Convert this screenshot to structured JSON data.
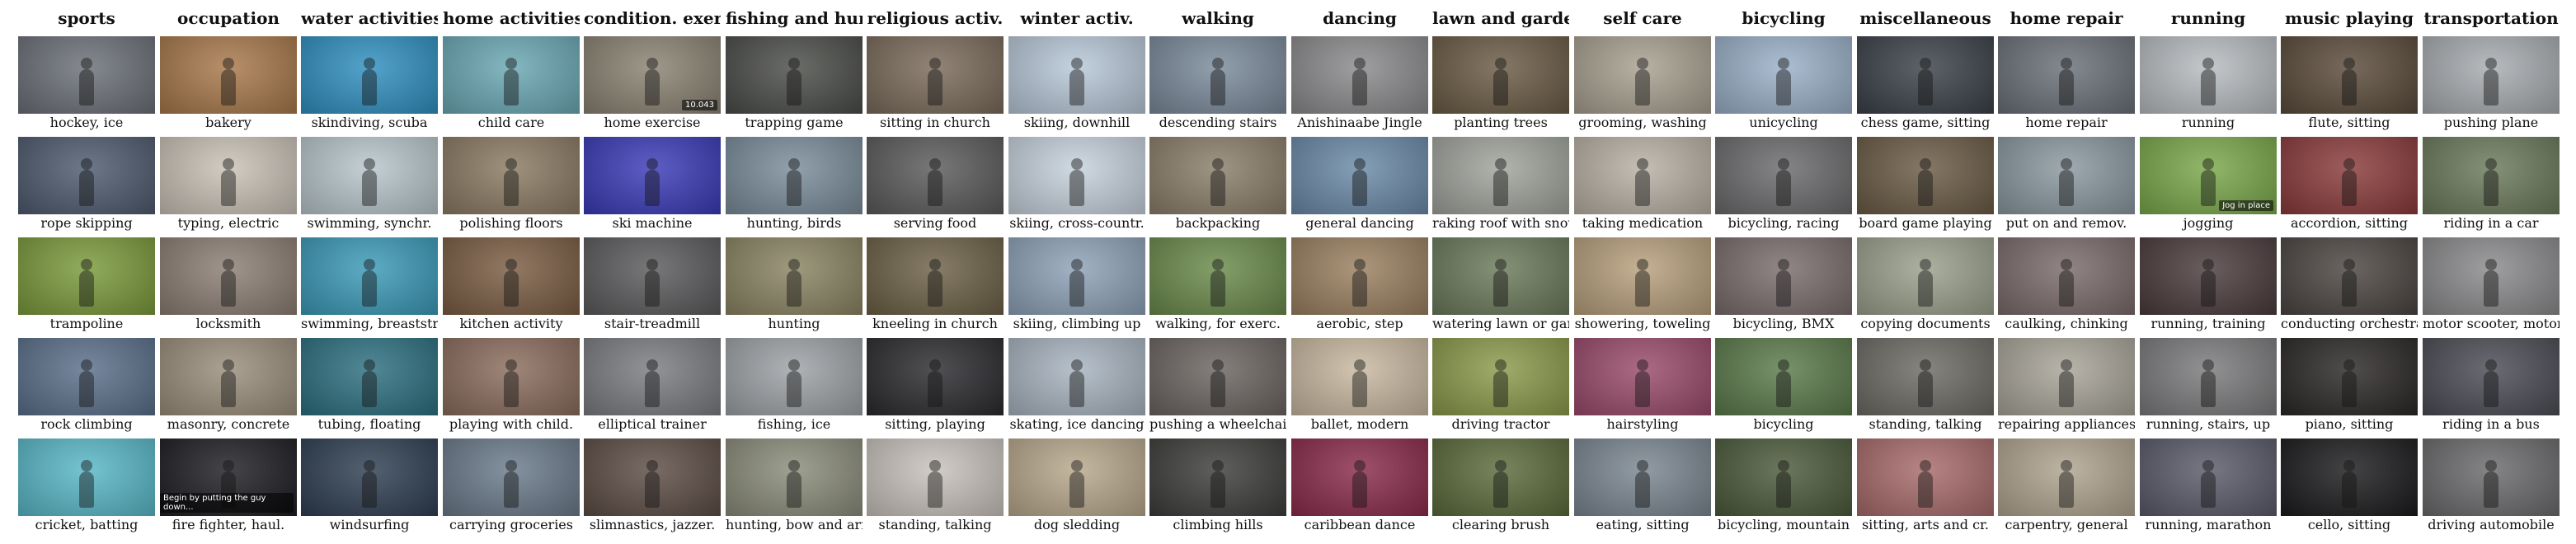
{
  "columns": [
    {
      "header": "sports",
      "items": [
        {
          "label": "hockey, ice",
          "color": "#6b6f78"
        },
        {
          "label": "rope skipping",
          "color": "#4d5a6e"
        },
        {
          "label": "trampoline",
          "color": "#7a9a3a"
        },
        {
          "label": "rock climbing",
          "color": "#5a6f8a"
        },
        {
          "label": "cricket, batting",
          "color": "#58b8c8"
        }
      ]
    },
    {
      "header": "occupation",
      "items": [
        {
          "label": "bakery",
          "color": "#a8784a"
        },
        {
          "label": "typing, electric",
          "color": "#c9c2b6"
        },
        {
          "label": "locksmith",
          "color": "#8c7e74"
        },
        {
          "label": "masonry, concrete",
          "color": "#9a8e7c"
        },
        {
          "label": "fire fighter, haul.",
          "color": "#1d1d22",
          "overlay": "Begin by putting the guy down..."
        }
      ]
    },
    {
      "header": "water activities",
      "items": [
        {
          "label": "skindiving, scuba",
          "color": "#2f8fc0"
        },
        {
          "label": "swimming, synchr.",
          "color": "#b8c6cc"
        },
        {
          "label": "swimming, breaststr.",
          "color": "#3a9ab8"
        },
        {
          "label": "tubing, floating",
          "color": "#2c6f80"
        },
        {
          "label": "windsurfing",
          "color": "#2e3e52"
        }
      ]
    },
    {
      "header": "home activities",
      "items": [
        {
          "label": "child care",
          "color": "#6aa8b4"
        },
        {
          "label": "polishing floors",
          "color": "#8a7a62"
        },
        {
          "label": "kitchen activity",
          "color": "#7a5c42"
        },
        {
          "label": "playing with child.",
          "color": "#8a6c5c"
        },
        {
          "label": "carrying groceries",
          "color": "#6a7a8a"
        }
      ]
    },
    {
      "header": "condition. exerc.",
      "items": [
        {
          "label": "home exercise",
          "color": "#8a8272",
          "overlay": "10.043"
        },
        {
          "label": "ski machine",
          "color": "#3a3ab8"
        },
        {
          "label": "stair-treadmill",
          "color": "#5a5a5c"
        },
        {
          "label": "elliptical trainer",
          "color": "#7a7c80"
        },
        {
          "label": "slimnastics, jazzer.",
          "color": "#5c4c44"
        }
      ]
    },
    {
      "header": "fishing and hunt.",
      "items": [
        {
          "label": "trapping game",
          "color": "#4a4c48"
        },
        {
          "label": "hunting, birds",
          "color": "#7a8c9a"
        },
        {
          "label": "hunting",
          "color": "#8a8462"
        },
        {
          "label": "fishing, ice",
          "color": "#9ea2a6"
        },
        {
          "label": "hunting, bow and arr.",
          "color": "#8a8c7a"
        }
      ]
    },
    {
      "header": "religious activ.",
      "items": [
        {
          "label": "sitting in church",
          "color": "#7a6a5a"
        },
        {
          "label": "serving food",
          "color": "#5a5a5a"
        },
        {
          "label": "kneeling in church",
          "color": "#6c6046"
        },
        {
          "label": "sitting, playing",
          "color": "#2a2a2e"
        },
        {
          "label": "standing, talking",
          "color": "#c8c2bc"
        }
      ]
    },
    {
      "header": "winter activ.",
      "items": [
        {
          "label": "skiing, downhill",
          "color": "#b8c8d8"
        },
        {
          "label": "skiing, cross-countr.",
          "color": "#c6d2dc"
        },
        {
          "label": "skiing, climbing up",
          "color": "#8ea2b8"
        },
        {
          "label": "skating, ice dancing",
          "color": "#a8b4c0"
        },
        {
          "label": "dog sledding",
          "color": "#b8a88c"
        }
      ]
    },
    {
      "header": "walking",
      "items": [
        {
          "label": "descending stairs",
          "color": "#7a8a9a"
        },
        {
          "label": "backpacking",
          "color": "#8a7e6a"
        },
        {
          "label": "walking, for exerc.",
          "color": "#6a8a4a"
        },
        {
          "label": "pushing a wheelchair",
          "color": "#6a6460"
        },
        {
          "label": "climbing hills",
          "color": "#3c3c3a"
        }
      ]
    },
    {
      "header": "dancing",
      "items": [
        {
          "label": "Anishinaabe Jingle",
          "color": "#8a8a8c"
        },
        {
          "label": "general dancing",
          "color": "#6a8aa8"
        },
        {
          "label": "aerobic, step",
          "color": "#9a8060"
        },
        {
          "label": "ballet, modern",
          "color": "#c8b8a0"
        },
        {
          "label": "caribbean dance",
          "color": "#8a2a4a"
        }
      ]
    },
    {
      "header": "lawn and garden",
      "items": [
        {
          "label": "planting trees",
          "color": "#6a5a44"
        },
        {
          "label": "raking roof with snow",
          "color": "#a0a49c"
        },
        {
          "label": "watering lawn or gard.",
          "color": "#6a7a5a"
        },
        {
          "label": "driving tractor",
          "color": "#8a9a4a"
        },
        {
          "label": "clearing brush",
          "color": "#5a6a3a"
        }
      ]
    },
    {
      "header": "self care",
      "items": [
        {
          "label": "grooming, washing",
          "color": "#a8a090"
        },
        {
          "label": "taking medication",
          "color": "#b8b0a4"
        },
        {
          "label": "showering, toweling",
          "color": "#b8a07c"
        },
        {
          "label": "hairstyling",
          "color": "#9a4a6a"
        },
        {
          "label": "eating, sitting",
          "color": "#7a8690"
        }
      ]
    },
    {
      "header": "bicycling",
      "items": [
        {
          "label": "unicycling",
          "color": "#9ab0c8"
        },
        {
          "label": "bicycling, racing",
          "color": "#6a6a6c"
        },
        {
          "label": "bicycling, BMX",
          "color": "#7a6c6c"
        },
        {
          "label": "bicycling",
          "color": "#5a7a4a"
        },
        {
          "label": "bicycling, mountain",
          "color": "#4a5a3a"
        }
      ]
    },
    {
      "header": "miscellaneous",
      "items": [
        {
          "label": "chess game, sitting",
          "color": "#3a4048"
        },
        {
          "label": "board game playing",
          "color": "#6a5a44"
        },
        {
          "label": "copying documents",
          "color": "#9aa08c"
        },
        {
          "label": "standing, talking",
          "color": "#6c6a64"
        },
        {
          "label": "sitting, arts and cr.",
          "color": "#a86a6a"
        }
      ]
    },
    {
      "header": "home repair",
      "items": [
        {
          "label": "home repair",
          "color": "#6a7078"
        },
        {
          "label": "put on and remov.",
          "color": "#8a98a0"
        },
        {
          "label": "caulking, chinking",
          "color": "#7a6a6a"
        },
        {
          "label": "repairing appliances",
          "color": "#a8a498"
        },
        {
          "label": "carpentry, general",
          "color": "#b0a490"
        }
      ]
    },
    {
      "header": "running",
      "items": [
        {
          "label": "running",
          "color": "#b8bcc0"
        },
        {
          "label": "jogging",
          "color": "#7aa84a",
          "overlay": "Jog in place"
        },
        {
          "label": "running, training",
          "color": "#4a3a3c"
        },
        {
          "label": "running, stairs, up",
          "color": "#7a7a7c"
        },
        {
          "label": "running, marathon",
          "color": "#5a5a6a"
        }
      ]
    },
    {
      "header": "music playing",
      "items": [
        {
          "label": "flute, sitting",
          "color": "#5a4a3a"
        },
        {
          "label": "accordion, sitting",
          "color": "#8a3a3a"
        },
        {
          "label": "conducting orchestra",
          "color": "#4a4440"
        },
        {
          "label": "piano, sitting",
          "color": "#2a2626"
        },
        {
          "label": "cello, sitting",
          "color": "#1a1a1c"
        }
      ]
    },
    {
      "header": "transportation",
      "items": [
        {
          "label": "pushing plane",
          "color": "#a8acb0"
        },
        {
          "label": "riding in a car",
          "color": "#6a7a5a"
        },
        {
          "label": "motor scooter, motor",
          "color": "#8a8a8c"
        },
        {
          "label": "riding in a bus",
          "color": "#4a4c54"
        },
        {
          "label": "driving automobile",
          "color": "#6a6a6c"
        }
      ]
    }
  ]
}
